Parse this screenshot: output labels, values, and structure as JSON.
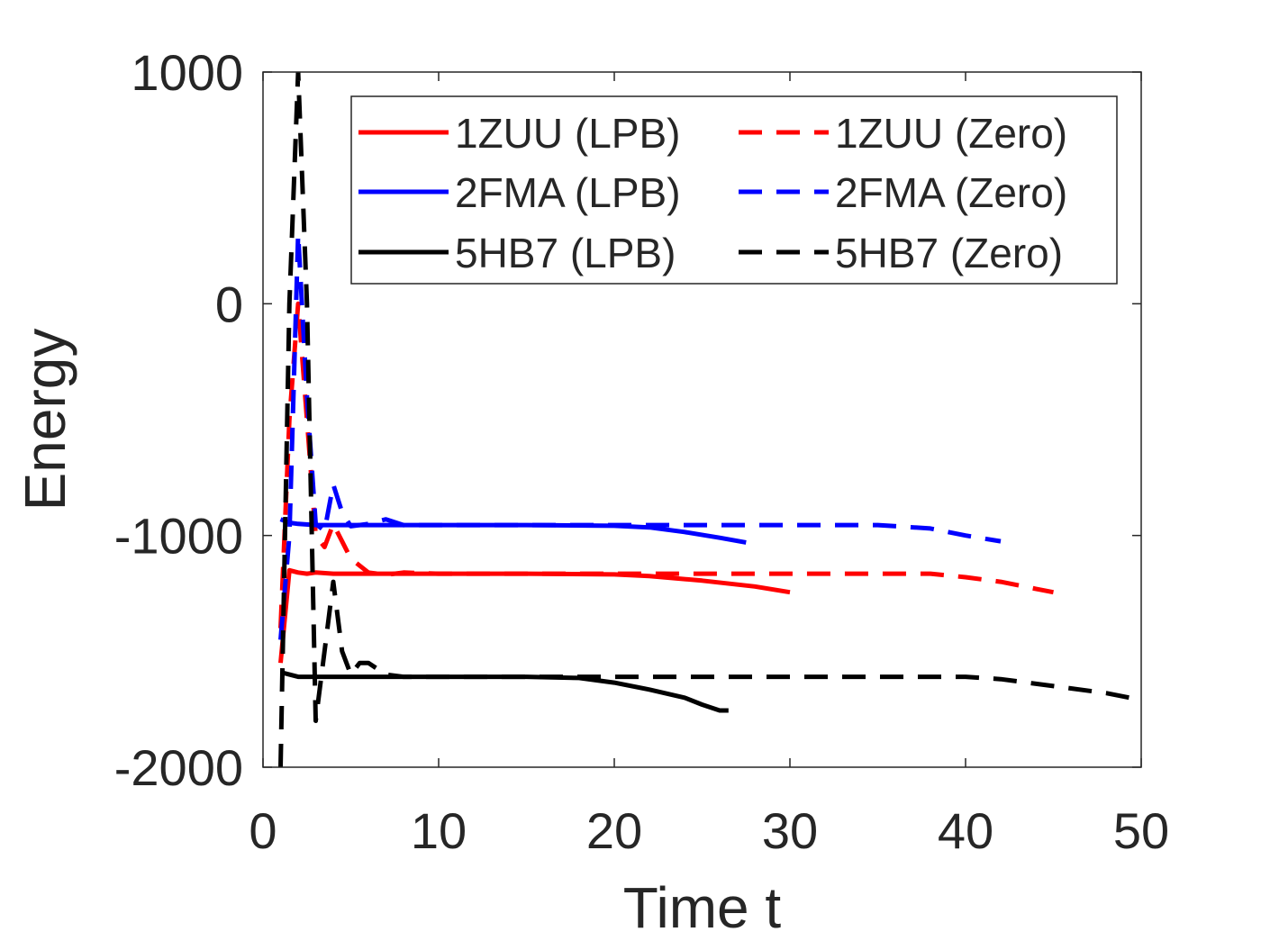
{
  "chart_data": {
    "type": "line",
    "title": "",
    "xlabel": "Time t",
    "ylabel": "Energy",
    "xlim": [
      0,
      50
    ],
    "ylim": [
      -2000,
      1000
    ],
    "xticks": [
      0,
      10,
      20,
      30,
      40,
      50
    ],
    "xtick_labels": [
      "0",
      "10",
      "20",
      "30",
      "40",
      "50"
    ],
    "yticks": [
      -2000,
      -1000,
      0,
      1000
    ],
    "ytick_labels": [
      "-2000",
      "-1000",
      "0",
      "1000"
    ],
    "grid": false,
    "legend_placement": "top-right",
    "series": [
      {
        "name": "1ZUU (LPB)",
        "color": "#ff0000",
        "dash": "solid",
        "x": [
          1,
          1.5,
          2,
          2.5,
          3,
          4,
          6,
          10,
          15,
          20,
          22,
          25,
          28,
          30
        ],
        "y": [
          -1550,
          -1150,
          -1160,
          -1165,
          -1160,
          -1165,
          -1165,
          -1165,
          -1165,
          -1168,
          -1175,
          -1195,
          -1220,
          -1245
        ]
      },
      {
        "name": "1ZUU (Zero)",
        "color": "#ff0000",
        "dash": "dashed",
        "x": [
          1,
          1.5,
          2,
          2.5,
          3,
          3.5,
          4,
          5,
          6,
          7,
          8,
          10,
          15,
          20,
          30,
          38,
          40,
          42,
          44,
          45
        ],
        "y": [
          -1400,
          -500,
          0,
          -500,
          -1000,
          -1050,
          -950,
          -1100,
          -1160,
          -1170,
          -1160,
          -1165,
          -1165,
          -1165,
          -1165,
          -1165,
          -1180,
          -1200,
          -1230,
          -1245
        ]
      },
      {
        "name": "2FMA (LPB)",
        "color": "#0000ff",
        "dash": "solid",
        "x": [
          1,
          1.5,
          2,
          3,
          5,
          10,
          15,
          20,
          22,
          24,
          26,
          27.5
        ],
        "y": [
          -930,
          -945,
          -950,
          -955,
          -955,
          -955,
          -955,
          -958,
          -965,
          -985,
          -1010,
          -1030
        ]
      },
      {
        "name": "2FMA (Zero)",
        "color": "#0000ff",
        "dash": "dashed",
        "x": [
          1,
          1.5,
          2,
          2.5,
          3,
          3.5,
          4,
          4.5,
          5,
          6,
          7,
          8,
          10,
          15,
          20,
          30,
          35,
          38,
          40,
          42
        ],
        "y": [
          -1450,
          -1000,
          300,
          -400,
          -950,
          -980,
          -780,
          -900,
          -960,
          -950,
          -930,
          -955,
          -955,
          -955,
          -955,
          -955,
          -955,
          -970,
          -1000,
          -1025
        ]
      },
      {
        "name": "5HB7 (LPB)",
        "color": "#000000",
        "dash": "solid",
        "x": [
          1,
          1.5,
          2,
          3,
          5,
          10,
          15,
          18,
          20,
          22,
          24,
          25,
          26,
          26.5
        ],
        "y": [
          -1590,
          -1600,
          -1610,
          -1610,
          -1610,
          -1610,
          -1610,
          -1615,
          -1635,
          -1665,
          -1700,
          -1730,
          -1755,
          -1755
        ]
      },
      {
        "name": "5HB7 (Zero)",
        "color": "#000000",
        "dash": "dashed",
        "x": [
          1,
          1.5,
          2,
          2.5,
          3,
          3.5,
          4,
          4.5,
          5,
          5.5,
          6,
          7,
          8,
          10,
          15,
          20,
          30,
          40,
          42,
          45,
          48,
          50
        ],
        "y": [
          -2000,
          0,
          1000,
          0,
          -1800,
          -1500,
          -1200,
          -1500,
          -1600,
          -1550,
          -1550,
          -1600,
          -1610,
          -1610,
          -1610,
          -1610,
          -1610,
          -1610,
          -1620,
          -1650,
          -1680,
          -1710
        ]
      }
    ]
  }
}
